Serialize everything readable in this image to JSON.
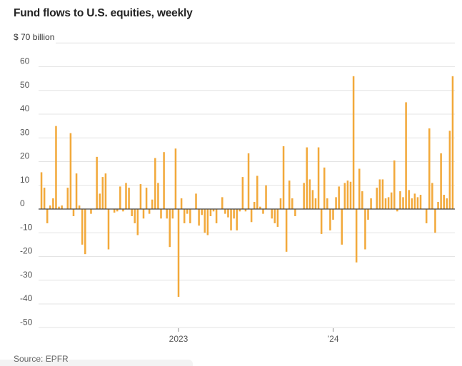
{
  "chart_data": {
    "type": "bar",
    "title": "Fund flows to U.S. equities, weekly",
    "unit_label": "$ 70 billion",
    "ylim": [
      -52,
      70
    ],
    "y_ticks": [
      60,
      50,
      40,
      30,
      20,
      10,
      0,
      -10,
      -20,
      -30,
      -40,
      -50
    ],
    "y_tick_labels": [
      "60",
      "50",
      "40",
      "30",
      "20",
      "10",
      "0",
      "-10",
      "-20",
      "-30",
      "-40",
      "-50"
    ],
    "x_tick_labels": [
      {
        "label": "2023",
        "week_index": 47
      },
      {
        "label": "’24",
        "week_index": 100
      }
    ],
    "grid": "horizontal",
    "bar_color": "#F2A93B",
    "values": [
      15.5,
      9,
      -6,
      1.5,
      4.5,
      35,
      1,
      1.5,
      0,
      9,
      32,
      -3,
      15,
      1.5,
      -15,
      -19,
      0,
      -2,
      0,
      22,
      6.5,
      13.5,
      15,
      -17,
      0,
      -1.5,
      -1,
      9.5,
      -1,
      11,
      9,
      -3,
      -6,
      -11,
      10.5,
      -4,
      9,
      -2,
      4,
      21.5,
      11,
      -4,
      24,
      -4,
      -16,
      -4,
      25.5,
      -37,
      4.5,
      -6,
      -2,
      -6,
      0,
      6.5,
      -7,
      -2.5,
      -10,
      -11,
      -3,
      -1,
      -6,
      0,
      5,
      -2,
      -3.5,
      -9,
      -4,
      -9,
      -1,
      13.5,
      -1,
      23.5,
      -5.5,
      3,
      14,
      1,
      -2,
      10,
      0,
      -4,
      -6,
      -7.5,
      4.5,
      26.5,
      -18,
      12,
      4.5,
      -3,
      0,
      0,
      11,
      26,
      12.5,
      8,
      4.5,
      26,
      -10.5,
      17.5,
      4.5,
      -9,
      -4.5,
      5,
      9.5,
      -15,
      11,
      12,
      11.5,
      56,
      -22.5,
      17,
      7.5,
      -17,
      -4.5,
      4.5,
      0,
      9,
      12.5,
      12.5,
      4.5,
      5,
      7,
      20.5,
      -1,
      7.5,
      5,
      45,
      8,
      4.5,
      6.5,
      5,
      6,
      0,
      -6,
      34,
      11,
      -10,
      3,
      23.5,
      6,
      4.5,
      33,
      56
    ]
  },
  "source": "Source: EPFR"
}
